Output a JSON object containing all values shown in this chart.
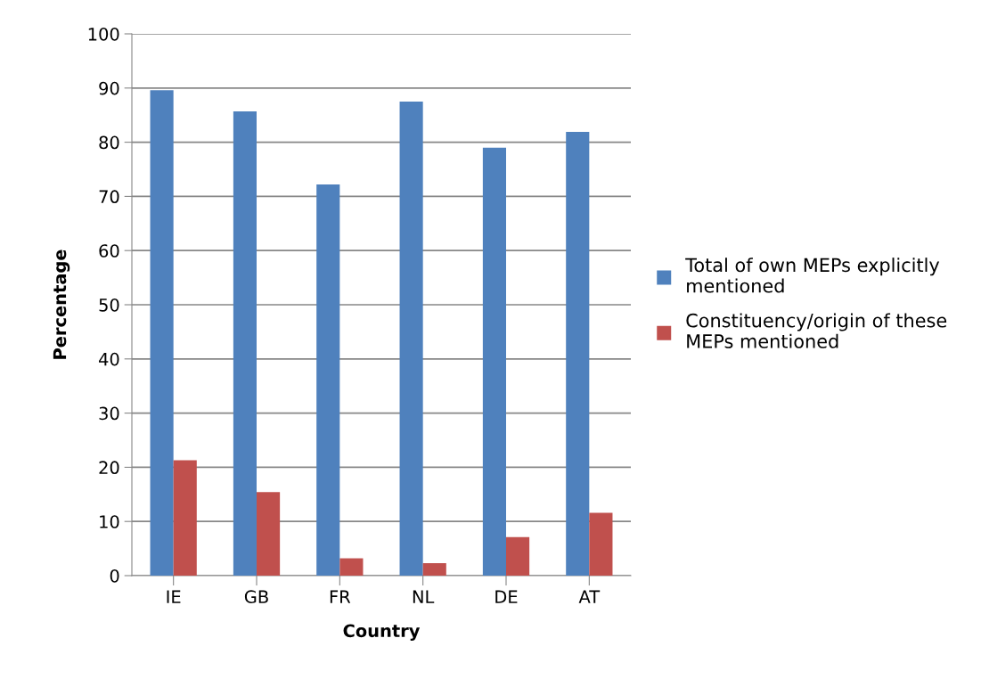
{
  "chart_data": {
    "type": "bar",
    "xlabel": "Country",
    "ylabel": "Percentage",
    "categories": [
      "IE",
      "GB",
      "FR",
      "NL",
      "DE",
      "AT"
    ],
    "series": [
      {
        "name": "Total of own MEPs explicitly\nmentioned",
        "color": "#4f81bd",
        "values": [
          89.6,
          85.7,
          72.2,
          87.5,
          79.0,
          81.9
        ]
      },
      {
        "name": "Constituency/origin of these\nMEPs mentioned",
        "color": "#c0504d",
        "values": [
          21.3,
          15.4,
          3.2,
          2.3,
          7.1,
          11.6
        ]
      }
    ],
    "ylim": [
      0,
      100
    ],
    "yticks": [
      0,
      10,
      20,
      30,
      40,
      50,
      60,
      70,
      80,
      90,
      100
    ],
    "grid": "y",
    "legend": "right"
  }
}
